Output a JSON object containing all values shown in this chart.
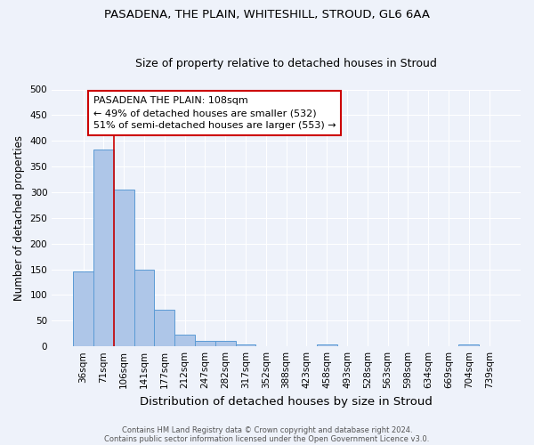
{
  "title1": "PASADENA, THE PLAIN, WHITESHILL, STROUD, GL6 6AA",
  "title2": "Size of property relative to detached houses in Stroud",
  "xlabel": "Distribution of detached houses by size in Stroud",
  "ylabel": "Number of detached properties",
  "categories": [
    "36sqm",
    "71sqm",
    "106sqm",
    "141sqm",
    "177sqm",
    "212sqm",
    "247sqm",
    "282sqm",
    "317sqm",
    "352sqm",
    "388sqm",
    "423sqm",
    "458sqm",
    "493sqm",
    "528sqm",
    "563sqm",
    "598sqm",
    "634sqm",
    "669sqm",
    "704sqm",
    "739sqm"
  ],
  "values": [
    145,
    383,
    305,
    150,
    71,
    23,
    10,
    10,
    4,
    0,
    0,
    0,
    4,
    0,
    0,
    0,
    0,
    0,
    0,
    4,
    0
  ],
  "bar_color": "#aec6e8",
  "bar_edge_color": "#5b9bd5",
  "background_color": "#eef2fa",
  "grid_color": "#ffffff",
  "vline_color": "#cc0000",
  "annotation_text": "PASADENA THE PLAIN: 108sqm\n← 49% of detached houses are smaller (532)\n51% of semi-detached houses are larger (553) →",
  "annotation_box_color": "#ffffff",
  "annotation_box_edge_color": "#cc0000",
  "footer1": "Contains HM Land Registry data © Crown copyright and database right 2024.",
  "footer2": "Contains public sector information licensed under the Open Government Licence v3.0.",
  "ylim": [
    0,
    500
  ],
  "yticks": [
    0,
    50,
    100,
    150,
    200,
    250,
    300,
    350,
    400,
    450,
    500
  ],
  "title1_fontsize": 9.5,
  "title2_fontsize": 9.0,
  "xlabel_fontsize": 9.5,
  "ylabel_fontsize": 8.5,
  "tick_fontsize": 7.5,
  "annotation_fontsize": 8.0,
  "footer_fontsize": 6.0
}
